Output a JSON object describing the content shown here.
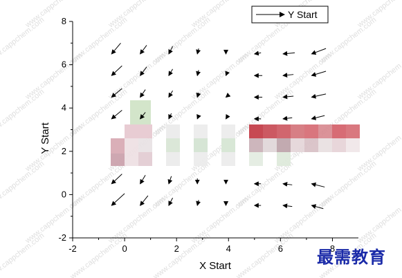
{
  "chart_data": {
    "type": "vector",
    "title": "",
    "xlabel": "X Start",
    "ylabel": "Y Start",
    "xlim": [
      -2,
      9
    ],
    "ylim": [
      -2,
      8
    ],
    "xticks": [
      -2,
      0,
      2,
      4,
      6,
      8
    ],
    "yticks": [
      -2,
      0,
      2,
      4,
      6,
      8
    ],
    "legend": {
      "label": "Y Start",
      "position": "top-right"
    },
    "grid": false,
    "x_starts": [
      -0.5,
      0.6,
      1.7,
      2.8,
      3.9,
      5.0,
      6.1,
      7.2
    ],
    "y_starts": [
      -0.5,
      0.5,
      1.5,
      2.5,
      3.5,
      4.5,
      5.5,
      6.5
    ],
    "rows": [
      {
        "y": 6.5,
        "dx": [
          0.35,
          0.25,
          0.15,
          0.05,
          0.0,
          0.25,
          0.45,
          0.55
        ],
        "dy": [
          0.5,
          0.4,
          0.35,
          0.25,
          0.15,
          0.05,
          0.05,
          0.25
        ]
      },
      {
        "y": 5.5,
        "dx": [
          0.4,
          0.25,
          0.15,
          0.05,
          0.05,
          0.3,
          0.4,
          0.55
        ],
        "dy": [
          0.45,
          0.4,
          0.3,
          0.25,
          0.15,
          0.0,
          0.05,
          0.2
        ]
      },
      {
        "y": 4.5,
        "dx": [
          0.4,
          0.2,
          0.15,
          0.05,
          0.1,
          0.3,
          0.4,
          0.55
        ],
        "dy": [
          0.4,
          0.35,
          0.3,
          0.2,
          0.1,
          0.0,
          0.05,
          0.15
        ]
      },
      {
        "y": 3.5,
        "dx": [
          0.4,
          0.2,
          0.1,
          0.05,
          0.05,
          0.25,
          0.35,
          0.5
        ],
        "dy": [
          0.4,
          0.3,
          0.25,
          0.15,
          0.1,
          0.0,
          0.05,
          0.15
        ]
      },
      {
        "y": 0.5,
        "dx": [
          0.4,
          0.2,
          0.1,
          0.0,
          0.0,
          0.25,
          0.35,
          0.5
        ],
        "dy": [
          0.45,
          0.4,
          0.35,
          0.25,
          0.15,
          0.0,
          -0.05,
          -0.15
        ]
      },
      {
        "y": -0.5,
        "dx": [
          0.5,
          0.3,
          0.15,
          0.05,
          0.0,
          0.25,
          0.35,
          0.45
        ],
        "dy": [
          0.55,
          0.45,
          0.35,
          0.25,
          0.1,
          0.0,
          -0.05,
          -0.15
        ]
      }
    ],
    "hidden_region": {
      "x": [
        -0.6,
        9.0
      ],
      "y": [
        1.5,
        3.3
      ]
    }
  },
  "watermark": {
    "text": "www.cappchem.com"
  },
  "corner_mark": {
    "text": "最需教育"
  },
  "colors": {
    "arrow": "#000000",
    "axis": "#000000",
    "corner_mark": "#1a2aa8"
  }
}
